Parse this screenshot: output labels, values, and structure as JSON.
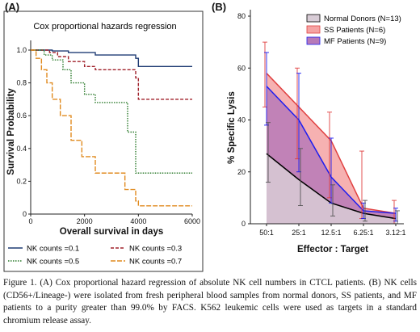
{
  "figure": {
    "panel_a_label": "(A)",
    "panel_b_label": "(B)",
    "caption": "Figure 1.  (A) Cox proportional hazard regression of absolute NK cell numbers in CTCL patients. (B) NK cells (CD56+/Lineage-) were isolated from fresh peripheral blood samples from normal donors, SS patients, and MF patients to a purity greater than 99.0% by FACS.  K562 leukemic cells were used as targets in a standard chromium release assay."
  },
  "chart_data": [
    {
      "type": "line",
      "panel": "A",
      "title": "Cox proportional hazards regression",
      "xlabel": "Overall survival in days",
      "ylabel": "Survival Probability",
      "xlim": [
        0,
        6000
      ],
      "ylim": [
        0,
        1
      ],
      "xticks": [
        0,
        2000,
        4000,
        6000
      ],
      "ytick_values": [
        0,
        0.2,
        0.4,
        0.6,
        0.8,
        1.0
      ],
      "ytick_labels": [
        "0",
        "0.2",
        "0.4",
        "0.6",
        "0.8",
        "1.0"
      ],
      "grid": false,
      "legend_position": "below",
      "series": [
        {
          "name": "NK counts =0.1",
          "color": "#1f3b73",
          "dash": "solid",
          "x": [
            0,
            800,
            1400,
            2400,
            3900,
            4000,
            6000
          ],
          "y": [
            1.0,
            0.995,
            0.985,
            0.97,
            0.95,
            0.9,
            0.9
          ]
        },
        {
          "name": "NK counts =0.3",
          "color": "#a0202a",
          "dash": "dash",
          "x": [
            0,
            700,
            1000,
            1400,
            2000,
            2400,
            3900,
            4000,
            6000
          ],
          "y": [
            1.0,
            0.985,
            0.96,
            0.93,
            0.9,
            0.88,
            0.83,
            0.7,
            0.7
          ]
        },
        {
          "name": "NK counts =0.5",
          "color": "#2a7a2a",
          "dash": "dot",
          "x": [
            0,
            500,
            800,
            1200,
            1500,
            2000,
            2400,
            3600,
            3900,
            6000
          ],
          "y": [
            1.0,
            0.97,
            0.94,
            0.88,
            0.8,
            0.73,
            0.68,
            0.5,
            0.25,
            0.25
          ]
        },
        {
          "name": "NK counts =0.7",
          "color": "#e08a1e",
          "dash": "longdash",
          "x": [
            0,
            200,
            400,
            600,
            800,
            1100,
            1500,
            1900,
            2400,
            3500,
            3900,
            4000,
            6000
          ],
          "y": [
            1.0,
            0.95,
            0.88,
            0.8,
            0.7,
            0.6,
            0.45,
            0.35,
            0.25,
            0.15,
            0.08,
            0.05,
            0.05
          ]
        }
      ]
    },
    {
      "type": "area",
      "panel": "B",
      "title": "",
      "xlabel": "Effector : Target",
      "ylabel": "% Specific Lysis",
      "categories": [
        "50:1",
        "25:1",
        "12.5:1",
        "6.25:1",
        "3.12:1"
      ],
      "ylim": [
        0,
        80
      ],
      "yticks": [
        0,
        20,
        40,
        60,
        80
      ],
      "grid": false,
      "legend_position": "top-right",
      "series": [
        {
          "name": "SS Patients (N=6)",
          "fill": "#f5a3a3",
          "stroke": "#e04040",
          "values": [
            58,
            45,
            32,
            6,
            4
          ],
          "err_low": [
            45,
            25,
            10,
            2,
            0
          ],
          "err_high": [
            70,
            60,
            43,
            28,
            9
          ]
        },
        {
          "name": "MF Patients (N=9)",
          "fill": "#b77ab8",
          "stroke": "#1e1ef0",
          "values": [
            53,
            40,
            18,
            5,
            4
          ],
          "err_low": [
            38,
            20,
            8,
            2,
            1
          ],
          "err_high": [
            66,
            58,
            33,
            8,
            6
          ]
        },
        {
          "name": "Normal Donors (N=13)",
          "fill": "#d8ccd6",
          "stroke": "#000000",
          "values": [
            27,
            17,
            8,
            4,
            2
          ],
          "err_low": [
            16,
            7,
            3,
            1,
            0
          ],
          "err_high": [
            39,
            29,
            15,
            9,
            5
          ]
        }
      ],
      "legend_order": [
        "Normal Donors (N=13)",
        "SS Patients (N=6)",
        "MF Patients (N=9)"
      ]
    }
  ]
}
